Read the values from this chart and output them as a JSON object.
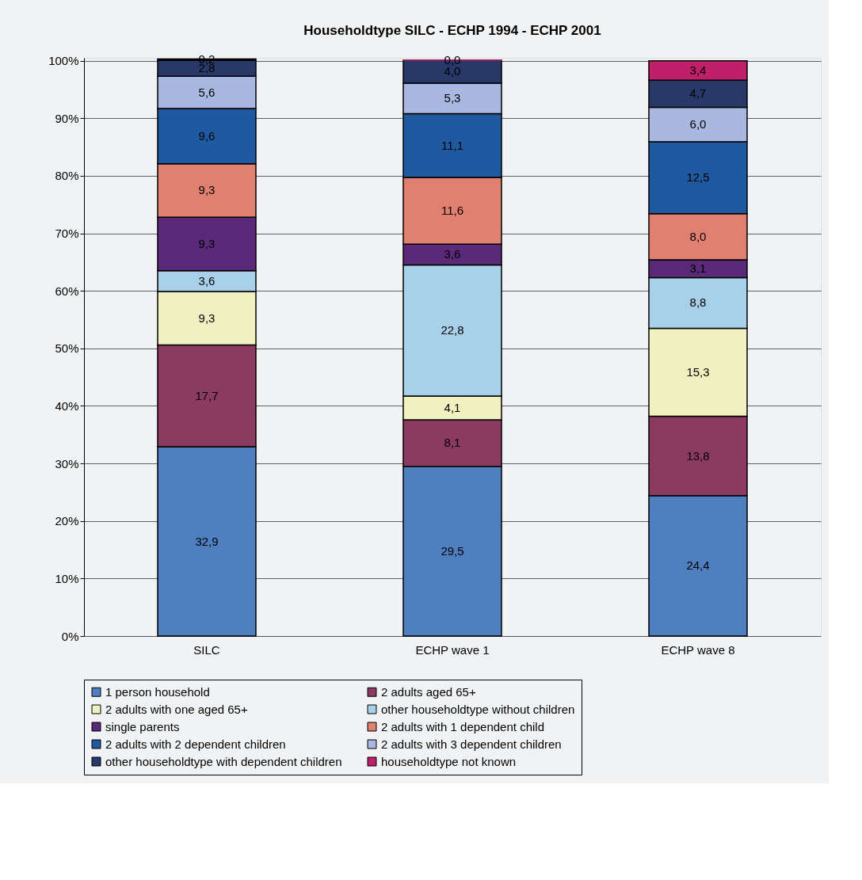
{
  "chart_data": {
    "type": "bar",
    "title": "Householdtype SILC - ECHP 1994 - ECHP 2001",
    "stacked": true,
    "categories": [
      "SILC",
      "ECHP wave 1",
      "ECHP wave 8"
    ],
    "series": [
      {
        "name": "1 person household",
        "color": "#4f7fc0",
        "values": [
          32.9,
          29.5,
          24.4
        ],
        "value_labels": [
          "32,9",
          "29,5",
          "24,4"
        ]
      },
      {
        "name": "2 adults  aged 65+",
        "color": "#8b3a62",
        "values": [
          17.7,
          8.1,
          13.8
        ],
        "value_labels": [
          "17,7",
          "8,1",
          "13,8"
        ]
      },
      {
        "name": "2 adults with one aged 65+",
        "color": "#f0f0c0",
        "values": [
          9.3,
          4.1,
          15.3
        ],
        "value_labels": [
          "9,3",
          "4,1",
          "15,3"
        ]
      },
      {
        "name": "other householdtype without children",
        "color": "#a8d0e8",
        "values": [
          3.6,
          22.8,
          8.8
        ],
        "value_labels": [
          "3,6",
          "22,8",
          "8,8"
        ]
      },
      {
        "name": "single parents",
        "color": "#5a2a78",
        "values": [
          9.3,
          3.6,
          3.1
        ],
        "value_labels": [
          "9,3",
          "3,6",
          "3,1"
        ]
      },
      {
        "name": "2 adults with 1 dependent child",
        "color": "#e08070",
        "values": [
          9.3,
          11.6,
          8.0
        ],
        "value_labels": [
          "9,3",
          "11,6",
          "8,0"
        ]
      },
      {
        "name": "2 adults with 2 dependent children",
        "color": "#1f5aa0",
        "values": [
          9.6,
          11.1,
          12.5
        ],
        "value_labels": [
          "9,6",
          "11,1",
          "12,5"
        ]
      },
      {
        "name": "2 adults with 3 dependent children",
        "color": "#a8b8e0",
        "values": [
          5.6,
          5.3,
          6.0
        ],
        "value_labels": [
          "5,6",
          "5,3",
          "6,0"
        ]
      },
      {
        "name": "other householdtype with dependent children",
        "color": "#283868",
        "values": [
          2.8,
          4.0,
          4.7
        ],
        "value_labels": [
          "2,8",
          "4,0",
          "4,7"
        ]
      },
      {
        "name": "householdtype not known",
        "color": "#c0206a",
        "values": [
          0.2,
          0.0,
          3.4
        ],
        "value_labels": [
          "0,2",
          "0,0",
          "3,4"
        ]
      }
    ],
    "ylim": [
      0,
      100.5
    ],
    "yticks": [
      {
        "value": 0,
        "label": "0%"
      },
      {
        "value": 10,
        "label": "10%"
      },
      {
        "value": 20,
        "label": "20%"
      },
      {
        "value": 30,
        "label": "30%"
      },
      {
        "value": 40,
        "label": "40%"
      },
      {
        "value": 50,
        "label": "50%"
      },
      {
        "value": 60,
        "label": "60%"
      },
      {
        "value": 70,
        "label": "70%"
      },
      {
        "value": 80,
        "label": "80%"
      },
      {
        "value": 90,
        "label": "90%"
      },
      {
        "value": 100,
        "label": "100%"
      }
    ],
    "grid": "y",
    "legend": "bottom"
  }
}
